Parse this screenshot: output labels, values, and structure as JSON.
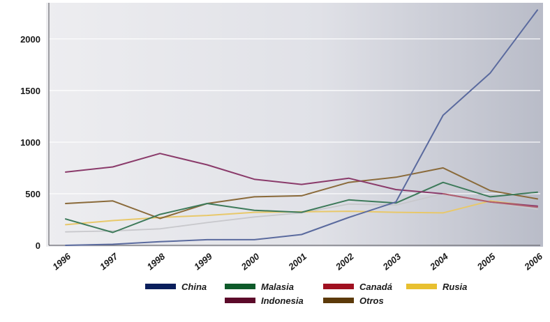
{
  "chart_data": {
    "type": "line",
    "title": "",
    "xlabel": "",
    "ylabel": "",
    "x": [
      "1996",
      "1997",
      "1998",
      "1999",
      "2000",
      "2001",
      "2002",
      "2003",
      "2004",
      "2005",
      "2006"
    ],
    "yticks": [
      "0",
      "500",
      "1000",
      "1500",
      "2000"
    ],
    "ylim": [
      0,
      2350
    ],
    "grid": true,
    "legend_position": "bottom",
    "series": [
      {
        "name": "China",
        "color": "#0a1f5c",
        "line_color": "#5a6a9e",
        "values": [
          0,
          10,
          35,
          55,
          55,
          105,
          270,
          420,
          1260,
          1670,
          2280
        ]
      },
      {
        "name": "Malasia",
        "color": "#0e5a2a",
        "line_color": "#3d7a5a",
        "values": [
          255,
          125,
          300,
          405,
          340,
          320,
          440,
          410,
          610,
          470,
          515
        ]
      },
      {
        "name": "Canadá",
        "color": "#a01020",
        "line_color": "#b06070",
        "values": [
          null,
          null,
          null,
          null,
          null,
          null,
          null,
          null,
          500,
          420,
          370
        ]
      },
      {
        "name": "Rusia",
        "color": "#e8c030",
        "line_color": "#e8c86a",
        "values": [
          200,
          240,
          270,
          290,
          320,
          325,
          330,
          320,
          315,
          430,
          375
        ]
      },
      {
        "name": "Indonesia",
        "color": "#5c0a2a",
        "line_color": "#8a3a6a",
        "values": [
          710,
          760,
          890,
          780,
          640,
          590,
          650,
          540,
          500,
          420,
          380
        ]
      },
      {
        "name": "Otros",
        "color": "#5c3a0a",
        "line_color": "#8a6a3a",
        "values": [
          405,
          430,
          260,
          405,
          470,
          480,
          610,
          660,
          750,
          530,
          450
        ]
      }
    ],
    "extra_series": [
      {
        "line_color": "#c8c8cc",
        "values": [
          130,
          140,
          160,
          220,
          275,
          315,
          400,
          390,
          500,
          420,
          350
        ]
      }
    ]
  }
}
